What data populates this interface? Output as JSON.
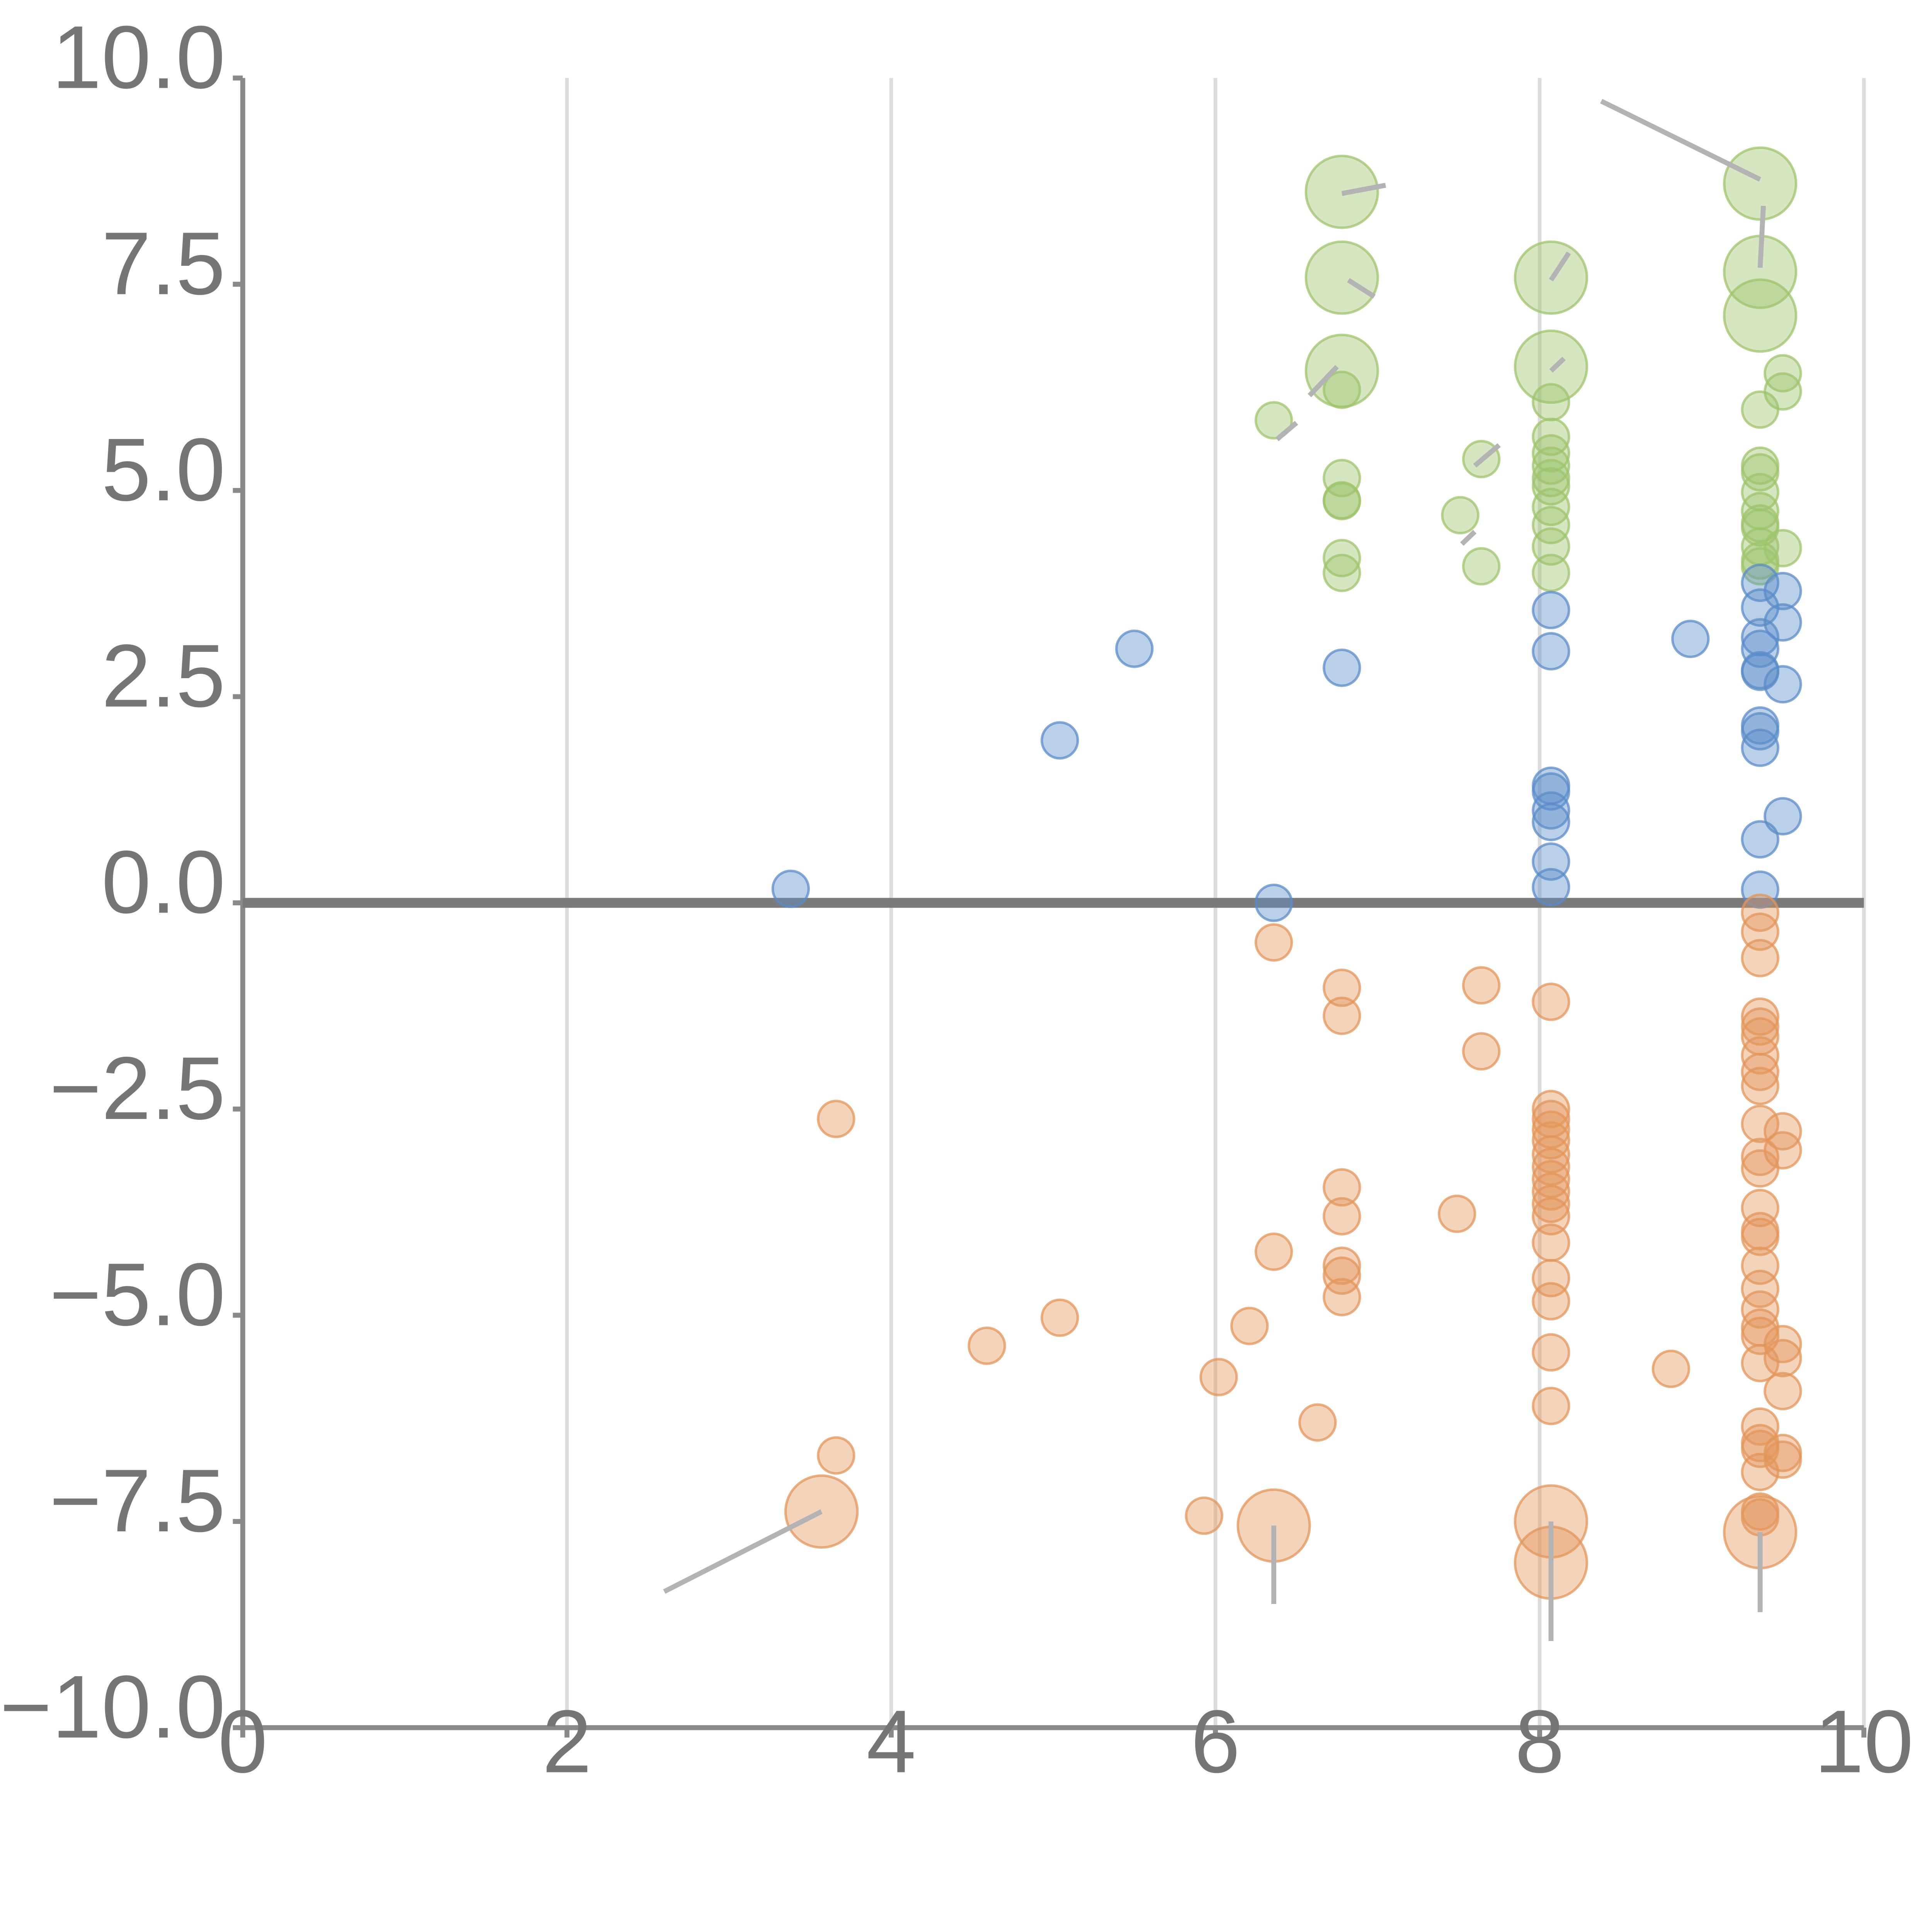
{
  "chart_data": {
    "type": "scatter",
    "title": "",
    "xlabel": "",
    "ylabel": "",
    "xlim": [
      0,
      10
    ],
    "ylim": [
      -10,
      10
    ],
    "x_ticks": [
      0,
      2,
      4,
      6,
      8,
      10
    ],
    "x_tick_labels": [
      "0",
      "2",
      "4",
      "6",
      "8",
      "10"
    ],
    "y_ticks": [
      10,
      7.5,
      5,
      2.5,
      0,
      -2.5,
      -5,
      -7.5,
      -10
    ],
    "y_tick_labels": [
      "10.0",
      "7.5",
      "5.0",
      "2.5",
      "0.0",
      "−2.5",
      "−5.0",
      "−7.5",
      "−10.0"
    ],
    "grid": "vertical",
    "reference_line_y": 0,
    "series": [
      {
        "name": "green",
        "color": "#9dc46b",
        "points": [
          {
            "x": 6.78,
            "y": 8.62,
            "size": "large"
          },
          {
            "x": 6.78,
            "y": 7.58,
            "size": "large"
          },
          {
            "x": 6.78,
            "y": 6.45,
            "size": "large"
          },
          {
            "x": 6.78,
            "y": 6.22
          },
          {
            "x": 6.78,
            "y": 5.15
          },
          {
            "x": 6.78,
            "y": 4.88
          },
          {
            "x": 6.78,
            "y": 4.87
          },
          {
            "x": 6.78,
            "y": 4.18
          },
          {
            "x": 6.78,
            "y": 4.0
          },
          {
            "x": 6.36,
            "y": 5.85
          },
          {
            "x": 7.64,
            "y": 5.38
          },
          {
            "x": 7.51,
            "y": 4.7
          },
          {
            "x": 7.64,
            "y": 4.08
          },
          {
            "x": 8.07,
            "y": 7.58,
            "size": "large"
          },
          {
            "x": 8.07,
            "y": 6.5,
            "size": "large"
          },
          {
            "x": 8.07,
            "y": 6.07
          },
          {
            "x": 8.07,
            "y": 5.65
          },
          {
            "x": 8.07,
            "y": 5.45
          },
          {
            "x": 8.07,
            "y": 5.3
          },
          {
            "x": 8.07,
            "y": 5.15
          },
          {
            "x": 8.07,
            "y": 5.05
          },
          {
            "x": 8.07,
            "y": 4.8
          },
          {
            "x": 8.07,
            "y": 4.58
          },
          {
            "x": 8.07,
            "y": 4.32
          },
          {
            "x": 8.07,
            "y": 4.0
          },
          {
            "x": 9.36,
            "y": 8.72,
            "size": "large"
          },
          {
            "x": 9.36,
            "y": 7.65,
            "size": "large"
          },
          {
            "x": 9.36,
            "y": 7.12,
            "size": "large"
          },
          {
            "x": 9.36,
            "y": 5.98
          },
          {
            "x": 9.36,
            "y": 5.3
          },
          {
            "x": 9.36,
            "y": 5.22
          },
          {
            "x": 9.36,
            "y": 4.98
          },
          {
            "x": 9.36,
            "y": 4.75
          },
          {
            "x": 9.36,
            "y": 4.6
          },
          {
            "x": 9.36,
            "y": 4.55
          },
          {
            "x": 9.36,
            "y": 4.32
          },
          {
            "x": 9.36,
            "y": 4.15
          },
          {
            "x": 9.36,
            "y": 4.08
          },
          {
            "x": 9.5,
            "y": 6.42
          },
          {
            "x": 9.5,
            "y": 6.2
          },
          {
            "x": 9.5,
            "y": 4.3
          }
        ]
      },
      {
        "name": "blue",
        "color": "#5b8cc8",
        "points": [
          {
            "x": 3.38,
            "y": 0.17
          },
          {
            "x": 5.04,
            "y": 1.97
          },
          {
            "x": 5.5,
            "y": 3.08
          },
          {
            "x": 6.36,
            "y": 0.0
          },
          {
            "x": 6.78,
            "y": 2.85
          },
          {
            "x": 8.07,
            "y": 3.55
          },
          {
            "x": 8.07,
            "y": 3.05
          },
          {
            "x": 8.07,
            "y": 1.42
          },
          {
            "x": 8.07,
            "y": 1.35
          },
          {
            "x": 8.07,
            "y": 1.12
          },
          {
            "x": 8.07,
            "y": 0.98
          },
          {
            "x": 8.07,
            "y": 0.5
          },
          {
            "x": 8.07,
            "y": 0.19
          },
          {
            "x": 8.93,
            "y": 3.2
          },
          {
            "x": 9.36,
            "y": 3.88
          },
          {
            "x": 9.36,
            "y": 3.58
          },
          {
            "x": 9.36,
            "y": 3.22
          },
          {
            "x": 9.36,
            "y": 3.08
          },
          {
            "x": 9.36,
            "y": 2.82
          },
          {
            "x": 9.36,
            "y": 2.8
          },
          {
            "x": 9.36,
            "y": 2.15
          },
          {
            "x": 9.36,
            "y": 2.08
          },
          {
            "x": 9.36,
            "y": 1.88
          },
          {
            "x": 9.36,
            "y": 0.77
          },
          {
            "x": 9.36,
            "y": 0.16
          },
          {
            "x": 9.5,
            "y": 3.78
          },
          {
            "x": 9.5,
            "y": 3.4
          },
          {
            "x": 9.5,
            "y": 2.65
          },
          {
            "x": 9.5,
            "y": 1.05
          }
        ]
      },
      {
        "name": "orange",
        "color": "#e3965a",
        "points": [
          {
            "x": 3.57,
            "y": -7.38,
            "size": "large"
          },
          {
            "x": 3.66,
            "y": -2.62
          },
          {
            "x": 3.66,
            "y": -6.7
          },
          {
            "x": 4.59,
            "y": -5.37
          },
          {
            "x": 5.04,
            "y": -5.03
          },
          {
            "x": 5.93,
            "y": -7.43
          },
          {
            "x": 6.02,
            "y": -5.75
          },
          {
            "x": 6.21,
            "y": -5.13
          },
          {
            "x": 6.36,
            "y": -0.48
          },
          {
            "x": 6.36,
            "y": -4.23
          },
          {
            "x": 6.36,
            "y": -7.55,
            "size": "large"
          },
          {
            "x": 6.63,
            "y": -6.3
          },
          {
            "x": 6.78,
            "y": -1.03
          },
          {
            "x": 6.78,
            "y": -1.37
          },
          {
            "x": 6.78,
            "y": -3.45
          },
          {
            "x": 6.78,
            "y": -3.8
          },
          {
            "x": 6.78,
            "y": -4.4
          },
          {
            "x": 6.78,
            "y": -4.52
          },
          {
            "x": 6.78,
            "y": -4.78
          },
          {
            "x": 7.49,
            "y": -3.77
          },
          {
            "x": 7.64,
            "y": -1.0
          },
          {
            "x": 7.64,
            "y": -1.8
          },
          {
            "x": 8.07,
            "y": -1.2
          },
          {
            "x": 8.07,
            "y": -2.5
          },
          {
            "x": 8.07,
            "y": -2.62
          },
          {
            "x": 8.07,
            "y": -2.75
          },
          {
            "x": 8.07,
            "y": -2.88
          },
          {
            "x": 8.07,
            "y": -3.05
          },
          {
            "x": 8.07,
            "y": -3.2
          },
          {
            "x": 8.07,
            "y": -3.35
          },
          {
            "x": 8.07,
            "y": -3.5
          },
          {
            "x": 8.07,
            "y": -3.65
          },
          {
            "x": 8.07,
            "y": -3.8
          },
          {
            "x": 8.07,
            "y": -4.12
          },
          {
            "x": 8.07,
            "y": -4.55
          },
          {
            "x": 8.07,
            "y": -4.83
          },
          {
            "x": 8.07,
            "y": -5.45
          },
          {
            "x": 8.07,
            "y": -6.1
          },
          {
            "x": 8.07,
            "y": -7.5,
            "size": "large"
          },
          {
            "x": 8.07,
            "y": -8.0,
            "size": "large"
          },
          {
            "x": 8.81,
            "y": -5.65
          },
          {
            "x": 9.36,
            "y": -0.12
          },
          {
            "x": 9.36,
            "y": -0.35
          },
          {
            "x": 9.36,
            "y": -0.67
          },
          {
            "x": 9.36,
            "y": -1.38
          },
          {
            "x": 9.36,
            "y": -1.5
          },
          {
            "x": 9.36,
            "y": -1.62
          },
          {
            "x": 9.36,
            "y": -1.85
          },
          {
            "x": 9.36,
            "y": -2.05
          },
          {
            "x": 9.36,
            "y": -2.22
          },
          {
            "x": 9.36,
            "y": -2.68
          },
          {
            "x": 9.36,
            "y": -3.08
          },
          {
            "x": 9.36,
            "y": -3.22
          },
          {
            "x": 9.36,
            "y": -3.7
          },
          {
            "x": 9.36,
            "y": -3.98
          },
          {
            "x": 9.36,
            "y": -4.05
          },
          {
            "x": 9.36,
            "y": -4.4
          },
          {
            "x": 9.36,
            "y": -4.68
          },
          {
            "x": 9.36,
            "y": -4.93
          },
          {
            "x": 9.36,
            "y": -5.15
          },
          {
            "x": 9.36,
            "y": -5.25
          },
          {
            "x": 9.36,
            "y": -5.58
          },
          {
            "x": 9.36,
            "y": -6.35
          },
          {
            "x": 9.36,
            "y": -6.55
          },
          {
            "x": 9.36,
            "y": -6.62
          },
          {
            "x": 9.36,
            "y": -6.9
          },
          {
            "x": 9.36,
            "y": -7.38
          },
          {
            "x": 9.36,
            "y": -7.45
          },
          {
            "x": 9.36,
            "y": -7.63,
            "size": "large"
          },
          {
            "x": 9.5,
            "y": -2.77
          },
          {
            "x": 9.5,
            "y": -3.0
          },
          {
            "x": 9.5,
            "y": -5.35
          },
          {
            "x": 9.5,
            "y": -5.52
          },
          {
            "x": 9.5,
            "y": -5.92
          },
          {
            "x": 9.5,
            "y": -6.67
          },
          {
            "x": 9.5,
            "y": -6.75
          }
        ]
      }
    ],
    "annotation_leaders": [
      {
        "from": [
          6.78,
          8.6
        ],
        "to": [
          7.05,
          8.7
        ]
      },
      {
        "from": [
          6.82,
          7.55
        ],
        "to": [
          6.98,
          7.35
        ]
      },
      {
        "from": [
          6.58,
          6.15
        ],
        "to": [
          6.75,
          6.5
        ]
      },
      {
        "from": [
          6.38,
          5.62
        ],
        "to": [
          6.5,
          5.82
        ]
      },
      {
        "from": [
          7.75,
          5.55
        ],
        "to": [
          7.6,
          5.3
        ]
      },
      {
        "from": [
          7.6,
          4.5
        ],
        "to": [
          7.52,
          4.35
        ]
      },
      {
        "from": [
          8.07,
          7.55
        ],
        "to": [
          8.18,
          7.88
        ]
      },
      {
        "from": [
          8.07,
          6.45
        ],
        "to": [
          8.15,
          6.6
        ]
      },
      {
        "from": [
          8.38,
          9.72
        ],
        "to": [
          9.36,
          8.77
        ]
      },
      {
        "from": [
          9.38,
          8.45
        ],
        "to": [
          9.36,
          7.7
        ]
      },
      {
        "from": [
          2.6,
          -8.35
        ],
        "to": [
          3.57,
          -7.38
        ]
      },
      {
        "from": [
          6.36,
          -7.55
        ],
        "to": [
          6.36,
          -8.5
        ]
      },
      {
        "from": [
          8.07,
          -7.5
        ],
        "to": [
          8.07,
          -8.95
        ]
      },
      {
        "from": [
          9.36,
          -7.63
        ],
        "to": [
          9.36,
          -8.6
        ]
      }
    ]
  }
}
